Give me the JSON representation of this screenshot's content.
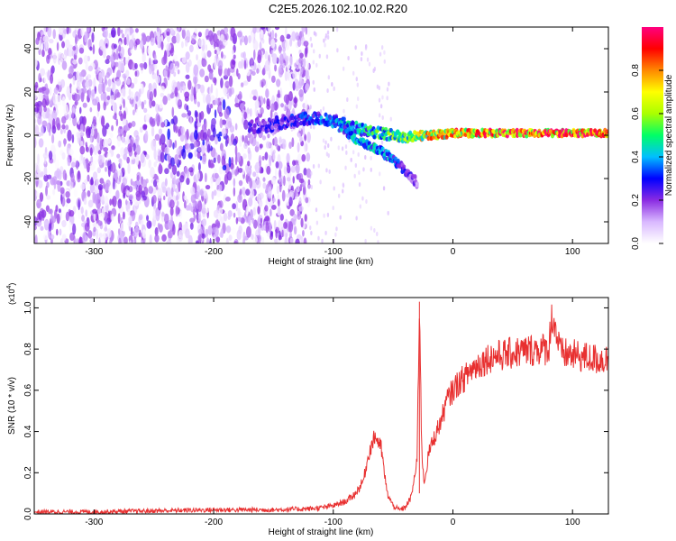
{
  "figure_title": "C2E5.2026.102.10.02.R20",
  "chart_data": [
    {
      "type": "heatmap",
      "title": "C2E5.2026.102.10.02.R20",
      "xlabel": "Height of straight line (km)",
      "ylabel": "Frequency (Hz)",
      "xlim": [
        -350,
        130
      ],
      "ylim": [
        -50,
        50
      ],
      "x_ticks": [
        -300,
        -200,
        -100,
        0,
        100
      ],
      "y_ticks": [
        -40,
        -20,
        0,
        20,
        40
      ],
      "grid": false,
      "colorbar": {
        "label": "Normalized spectral amplitude",
        "range": [
          0,
          1
        ],
        "ticks": [
          "0.0",
          "0.2",
          "0.4",
          "0.6",
          "0.8"
        ],
        "colors": [
          "#ffffff",
          "#d9b8ff",
          "#8a2be2",
          "#0000ff",
          "#00bfff",
          "#00ff66",
          "#aaff00",
          "#ffff00",
          "#ff8800",
          "#ff0000",
          "#ff0080"
        ]
      },
      "noise_region": {
        "x_range": [
          -350,
          -120
        ],
        "freq_range": [
          -50,
          50
        ]
      },
      "ridge": [
        {
          "x": -170,
          "f": 4,
          "a": 0.25
        },
        {
          "x": -150,
          "f": 5,
          "a": 0.28
        },
        {
          "x": -130,
          "f": 7,
          "a": 0.32
        },
        {
          "x": -110,
          "f": 8,
          "a": 0.38
        },
        {
          "x": -95,
          "f": 6,
          "a": 0.42
        },
        {
          "x": -80,
          "f": 3,
          "a": 0.48
        },
        {
          "x": -60,
          "f": 1,
          "a": 0.55
        },
        {
          "x": -40,
          "f": -1,
          "a": 0.65
        },
        {
          "x": -20,
          "f": 0,
          "a": 0.8
        },
        {
          "x": 0,
          "f": 1,
          "a": 0.9
        },
        {
          "x": 50,
          "f": 1,
          "a": 1.0
        },
        {
          "x": 130,
          "f": 1,
          "a": 1.0
        }
      ],
      "branch": [
        {
          "x": -95,
          "f": 4,
          "a": 0.4
        },
        {
          "x": -80,
          "f": -2,
          "a": 0.45
        },
        {
          "x": -65,
          "f": -6,
          "a": 0.45
        },
        {
          "x": -50,
          "f": -11,
          "a": 0.4
        },
        {
          "x": -30,
          "f": -22,
          "a": 0.2
        }
      ]
    },
    {
      "type": "line",
      "xlabel": "Height of straight line (km)",
      "ylabel": "SNR (10 * v/v)",
      "y_multiplier": "(x10",
      "y_multiplier_exp": "4",
      "y_multiplier_close": ")",
      "xlim": [
        -350,
        130
      ],
      "ylim": [
        0,
        1.05
      ],
      "x_ticks": [
        -300,
        -200,
        -100,
        0,
        100
      ],
      "y_ticks": [
        "0.0",
        "0.2",
        "0.4",
        "0.6",
        "0.8",
        "1.0"
      ],
      "series_color": "#e83030",
      "series": [
        {
          "name": "SNR",
          "x": [
            -350,
            -300,
            -250,
            -200,
            -150,
            -120,
            -110,
            -100,
            -90,
            -85,
            -80,
            -75,
            -70,
            -65,
            -60,
            -55,
            -50,
            -45,
            -40,
            -35,
            -30,
            -28,
            -26,
            -24,
            -20,
            -15,
            -10,
            -5,
            0,
            5,
            10,
            15,
            20,
            25,
            30,
            40,
            50,
            60,
            70,
            80,
            83,
            90,
            100,
            110,
            120,
            130
          ],
          "y": [
            0.01,
            0.01,
            0.015,
            0.02,
            0.02,
            0.025,
            0.03,
            0.04,
            0.06,
            0.08,
            0.11,
            0.16,
            0.3,
            0.38,
            0.32,
            0.1,
            0.04,
            0.02,
            0.03,
            0.08,
            0.25,
            1.03,
            0.3,
            0.15,
            0.3,
            0.38,
            0.45,
            0.55,
            0.6,
            0.64,
            0.66,
            0.7,
            0.72,
            0.74,
            0.76,
            0.77,
            0.78,
            0.79,
            0.8,
            0.8,
            0.97,
            0.78,
            0.77,
            0.76,
            0.75,
            0.75
          ]
        }
      ],
      "annotations": [
        {
          "x": -28,
          "y": 1.03,
          "label": ""
        }
      ]
    }
  ]
}
